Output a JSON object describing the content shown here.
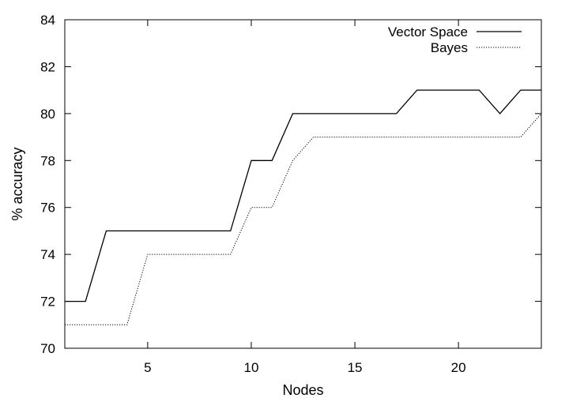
{
  "chart_data": {
    "type": "line",
    "xlabel": "Nodes",
    "ylabel": "% accuracy",
    "xlim": [
      1,
      24
    ],
    "ylim": [
      70,
      84
    ],
    "xticks": [
      5,
      10,
      15,
      20
    ],
    "yticks": [
      70,
      72,
      74,
      76,
      78,
      80,
      82,
      84
    ],
    "x": [
      1,
      2,
      3,
      4,
      5,
      6,
      7,
      8,
      9,
      10,
      11,
      12,
      13,
      14,
      15,
      16,
      17,
      18,
      19,
      20,
      21,
      22,
      23,
      24
    ],
    "legend_position": "top-right",
    "series": [
      {
        "name": "Vector Space",
        "style": "solid",
        "color": "#000000",
        "values": [
          72,
          72,
          75,
          75,
          75,
          75,
          75,
          75,
          75,
          78,
          78,
          80,
          80,
          80,
          80,
          80,
          80,
          81,
          81,
          81,
          81,
          80,
          81,
          81
        ]
      },
      {
        "name": "Bayes",
        "style": "dotted",
        "color": "#000000",
        "values": [
          71,
          71,
          71,
          71,
          74,
          74,
          74,
          74,
          74,
          76,
          76,
          78,
          79,
          79,
          79,
          79,
          79,
          79,
          79,
          79,
          79,
          79,
          79,
          80
        ]
      }
    ]
  }
}
